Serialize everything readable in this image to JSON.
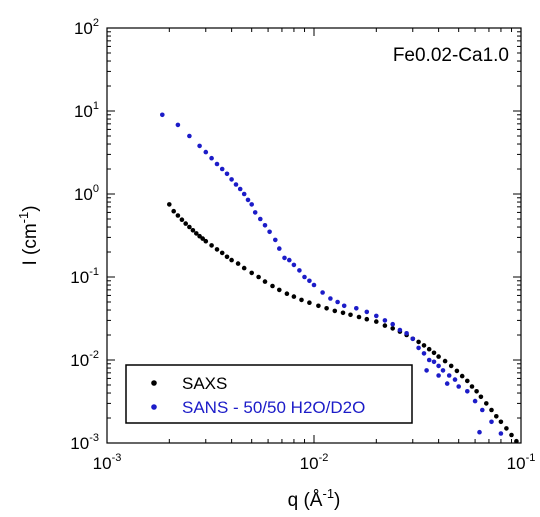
{
  "chart_data": {
    "type": "scatter",
    "x_scale": "log",
    "y_scale": "log",
    "xlim": [
      0.001,
      0.1
    ],
    "ylim": [
      0.001,
      100
    ],
    "x_ticks": [
      {
        "value": 0.001,
        "base": "10",
        "exp": "-3"
      },
      {
        "value": 0.01,
        "base": "10",
        "exp": "-2"
      },
      {
        "value": 0.1,
        "base": "10",
        "exp": "-1"
      }
    ],
    "y_ticks": [
      {
        "value": 100,
        "base": "10",
        "exp": "2"
      },
      {
        "value": 10,
        "base": "10",
        "exp": "1"
      },
      {
        "value": 1,
        "base": "10",
        "exp": "0"
      },
      {
        "value": 0.1,
        "base": "10",
        "exp": "-1"
      },
      {
        "value": 0.01,
        "base": "10",
        "exp": "-2"
      },
      {
        "value": 0.001,
        "base": "10",
        "exp": "-3"
      }
    ],
    "xlabel": {
      "main": "q (Å",
      "sup": "-1",
      "tail": ")"
    },
    "ylabel": {
      "main": "I (cm",
      "sup": "-1",
      "tail": ")"
    },
    "annotation": "Fe0.02-Ca1.0",
    "legend_position": "bottom-left",
    "series": [
      {
        "name": "SAXS",
        "color": "#000000",
        "points": [
          [
            0.002,
            0.75
          ],
          [
            0.0021,
            0.62
          ],
          [
            0.0022,
            0.55
          ],
          [
            0.0023,
            0.49
          ],
          [
            0.0024,
            0.44
          ],
          [
            0.0025,
            0.4
          ],
          [
            0.0026,
            0.365
          ],
          [
            0.0027,
            0.335
          ],
          [
            0.0028,
            0.31
          ],
          [
            0.0029,
            0.29
          ],
          [
            0.003,
            0.27
          ],
          [
            0.0032,
            0.24
          ],
          [
            0.0034,
            0.215
          ],
          [
            0.0036,
            0.195
          ],
          [
            0.0038,
            0.175
          ],
          [
            0.004,
            0.16
          ],
          [
            0.0043,
            0.145
          ],
          [
            0.0046,
            0.128
          ],
          [
            0.005,
            0.112
          ],
          [
            0.0054,
            0.1
          ],
          [
            0.0058,
            0.088
          ],
          [
            0.0063,
            0.078
          ],
          [
            0.0068,
            0.07
          ],
          [
            0.0074,
            0.063
          ],
          [
            0.008,
            0.058
          ],
          [
            0.0087,
            0.053
          ],
          [
            0.0095,
            0.049
          ],
          [
            0.0105,
            0.045
          ],
          [
            0.0115,
            0.042
          ],
          [
            0.0126,
            0.039
          ],
          [
            0.0138,
            0.037
          ],
          [
            0.015,
            0.035
          ],
          [
            0.0165,
            0.033
          ],
          [
            0.018,
            0.031
          ],
          [
            0.02,
            0.029
          ],
          [
            0.022,
            0.026
          ],
          [
            0.024,
            0.024
          ],
          [
            0.026,
            0.022
          ],
          [
            0.028,
            0.02
          ],
          [
            0.03,
            0.018
          ],
          [
            0.032,
            0.0165
          ],
          [
            0.034,
            0.015
          ],
          [
            0.036,
            0.0135
          ],
          [
            0.038,
            0.0122
          ],
          [
            0.04,
            0.011
          ],
          [
            0.043,
            0.0097
          ],
          [
            0.046,
            0.0085
          ],
          [
            0.049,
            0.0074
          ],
          [
            0.052,
            0.0064
          ],
          [
            0.055,
            0.0056
          ],
          [
            0.058,
            0.0048
          ],
          [
            0.061,
            0.0042
          ],
          [
            0.064,
            0.0036
          ],
          [
            0.068,
            0.003
          ],
          [
            0.072,
            0.0025
          ],
          [
            0.076,
            0.0021
          ],
          [
            0.08,
            0.0018
          ],
          [
            0.085,
            0.0015
          ],
          [
            0.09,
            0.00125
          ],
          [
            0.095,
            0.00105
          ]
        ]
      },
      {
        "name": "SANS - 50/50 H2O/D2O",
        "color": "#1c1cc8",
        "points": [
          [
            0.00185,
            9.0
          ],
          [
            0.0022,
            6.8
          ],
          [
            0.0025,
            5.0
          ],
          [
            0.0028,
            3.8
          ],
          [
            0.003,
            3.2
          ],
          [
            0.0032,
            2.7
          ],
          [
            0.0034,
            2.3
          ],
          [
            0.0036,
            2.0
          ],
          [
            0.0038,
            1.75
          ],
          [
            0.004,
            1.5
          ],
          [
            0.0042,
            1.3
          ],
          [
            0.0044,
            1.15
          ],
          [
            0.0046,
            1.0
          ],
          [
            0.0048,
            0.85
          ],
          [
            0.005,
            0.75
          ],
          [
            0.0052,
            0.6
          ],
          [
            0.0055,
            0.5
          ],
          [
            0.0058,
            0.42
          ],
          [
            0.0061,
            0.35
          ],
          [
            0.0065,
            0.28
          ],
          [
            0.0068,
            0.22
          ],
          [
            0.0072,
            0.17
          ],
          [
            0.0076,
            0.16
          ],
          [
            0.008,
            0.14
          ],
          [
            0.0085,
            0.12
          ],
          [
            0.009,
            0.1
          ],
          [
            0.0095,
            0.09
          ],
          [
            0.01,
            0.08
          ],
          [
            0.011,
            0.065
          ],
          [
            0.012,
            0.055
          ],
          [
            0.013,
            0.05
          ],
          [
            0.014,
            0.045
          ],
          [
            0.016,
            0.042
          ],
          [
            0.018,
            0.038
          ],
          [
            0.02,
            0.034
          ],
          [
            0.022,
            0.03
          ],
          [
            0.024,
            0.027
          ],
          [
            0.026,
            0.023
          ],
          [
            0.028,
            0.021
          ],
          [
            0.03,
            0.018
          ],
          [
            0.032,
            0.014
          ],
          [
            0.034,
            0.012
          ],
          [
            0.036,
            0.01
          ],
          [
            0.038,
            0.0095
          ],
          [
            0.04,
            0.0085
          ],
          [
            0.042,
            0.0075
          ],
          [
            0.045,
            0.0065
          ],
          [
            0.048,
            0.0058
          ],
          [
            0.05,
            0.0048
          ],
          [
            0.055,
            0.0042
          ],
          [
            0.06,
            0.0032
          ],
          [
            0.065,
            0.0025
          ],
          [
            0.072,
            0.0018
          ],
          [
            0.08,
            0.0013
          ],
          [
            0.063,
            0.00135
          ],
          [
            0.04,
            0.0065
          ],
          [
            0.044,
            0.0052
          ],
          [
            0.035,
            0.0075
          ]
        ]
      }
    ]
  }
}
